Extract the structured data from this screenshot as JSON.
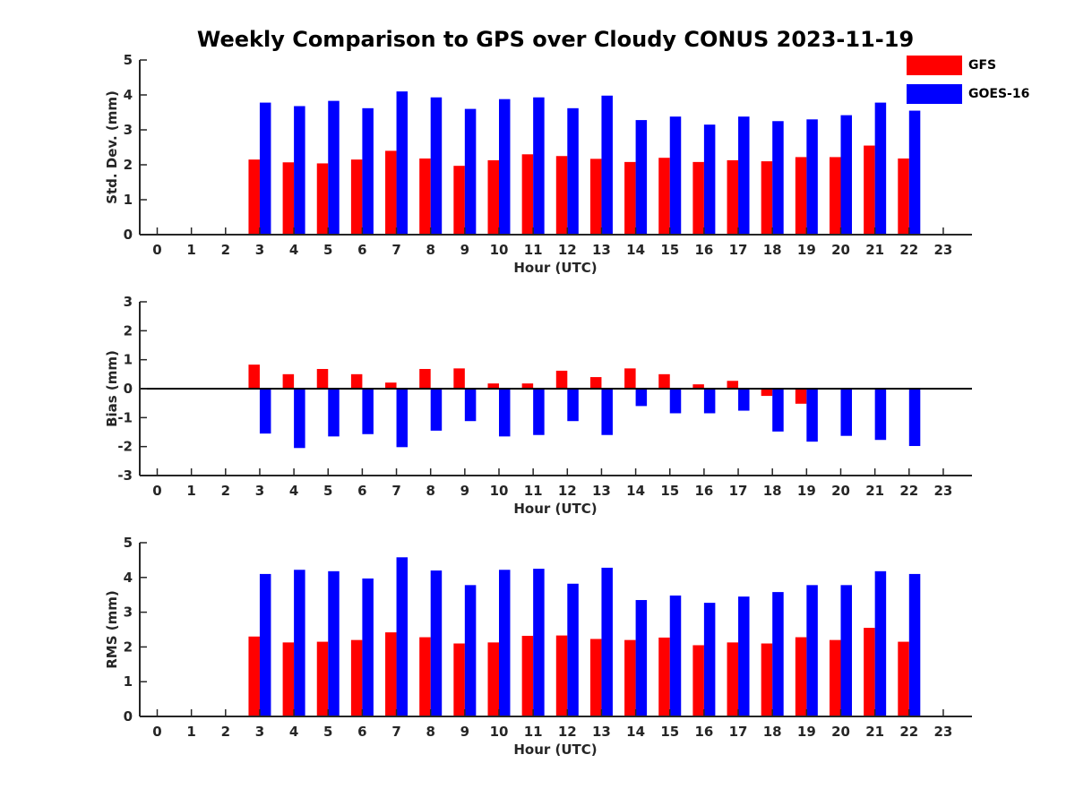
{
  "title": "Weekly Comparison to GPS over Cloudy CONUS 2023-11-19",
  "legend": [
    {
      "name": "GFS",
      "color": "#ff0000"
    },
    {
      "name": "GOES-16",
      "color": "#0000ff"
    }
  ],
  "chart_data": [
    {
      "type": "bar",
      "ylabel": "Std. Dev. (mm)",
      "xlabel": "Hour (UTC)",
      "categories": [
        "0",
        "1",
        "2",
        "3",
        "4",
        "5",
        "6",
        "7",
        "8",
        "9",
        "10",
        "11",
        "12",
        "13",
        "14",
        "15",
        "16",
        "17",
        "18",
        "19",
        "20",
        "21",
        "22",
        "23"
      ],
      "ylim": [
        0,
        5
      ],
      "yticks": [
        "0",
        "1",
        "2",
        "3",
        "4",
        "5"
      ],
      "series": [
        {
          "name": "GFS",
          "color": "#ff0000",
          "values": [
            null,
            null,
            null,
            2.15,
            2.07,
            2.04,
            2.15,
            2.4,
            2.18,
            1.97,
            2.13,
            2.3,
            2.25,
            2.17,
            2.08,
            2.2,
            2.08,
            2.13,
            2.1,
            2.22,
            2.22,
            2.55,
            2.18,
            null
          ]
        },
        {
          "name": "GOES-16",
          "color": "#0000ff",
          "values": [
            null,
            null,
            null,
            3.78,
            3.68,
            3.83,
            3.62,
            4.1,
            3.93,
            3.6,
            3.88,
            3.93,
            3.62,
            3.98,
            3.28,
            3.38,
            3.15,
            3.38,
            3.25,
            3.3,
            3.42,
            3.78,
            3.55,
            null
          ]
        }
      ]
    },
    {
      "type": "bar",
      "ylabel": "Bias (mm)",
      "xlabel": "Hour (UTC)",
      "categories": [
        "0",
        "1",
        "2",
        "3",
        "4",
        "5",
        "6",
        "7",
        "8",
        "9",
        "10",
        "11",
        "12",
        "13",
        "14",
        "15",
        "16",
        "17",
        "18",
        "19",
        "20",
        "21",
        "22",
        "23"
      ],
      "ylim": [
        -3,
        3
      ],
      "yticks": [
        "-3",
        "-2",
        "-1",
        "0",
        "1",
        "2",
        "3"
      ],
      "series": [
        {
          "name": "GFS",
          "color": "#ff0000",
          "values": [
            null,
            null,
            null,
            0.83,
            0.5,
            0.68,
            0.5,
            0.21,
            0.68,
            0.7,
            0.18,
            0.18,
            0.62,
            0.4,
            0.7,
            0.5,
            0.15,
            0.27,
            -0.25,
            -0.52,
            0.03,
            0.03,
            0.03,
            null
          ]
        },
        {
          "name": "GOES-16",
          "color": "#0000ff",
          "values": [
            null,
            null,
            null,
            -1.55,
            -2.05,
            -1.65,
            -1.57,
            -2.02,
            -1.45,
            -1.12,
            -1.65,
            -1.6,
            -1.12,
            -1.6,
            -0.6,
            -0.85,
            -0.85,
            -0.76,
            -1.48,
            -1.83,
            -1.63,
            -1.77,
            -1.98,
            null
          ]
        }
      ]
    },
    {
      "type": "bar",
      "ylabel": "RMS (mm)",
      "xlabel": "Hour (UTC)",
      "categories": [
        "0",
        "1",
        "2",
        "3",
        "4",
        "5",
        "6",
        "7",
        "8",
        "9",
        "10",
        "11",
        "12",
        "13",
        "14",
        "15",
        "16",
        "17",
        "18",
        "19",
        "20",
        "21",
        "22",
        "23"
      ],
      "ylim": [
        0,
        5
      ],
      "yticks": [
        "0",
        "1",
        "2",
        "3",
        "4",
        "5"
      ],
      "series": [
        {
          "name": "GFS",
          "color": "#ff0000",
          "values": [
            null,
            null,
            null,
            2.3,
            2.13,
            2.15,
            2.2,
            2.42,
            2.28,
            2.1,
            2.13,
            2.32,
            2.33,
            2.23,
            2.2,
            2.27,
            2.05,
            2.13,
            2.1,
            2.28,
            2.2,
            2.55,
            2.15,
            null
          ]
        },
        {
          "name": "GOES-16",
          "color": "#0000ff",
          "values": [
            null,
            null,
            null,
            4.1,
            4.22,
            4.18,
            3.97,
            4.58,
            4.2,
            3.78,
            4.22,
            4.25,
            3.82,
            4.28,
            3.35,
            3.48,
            3.27,
            3.45,
            3.58,
            3.78,
            3.78,
            4.18,
            4.1,
            null
          ]
        }
      ]
    }
  ]
}
